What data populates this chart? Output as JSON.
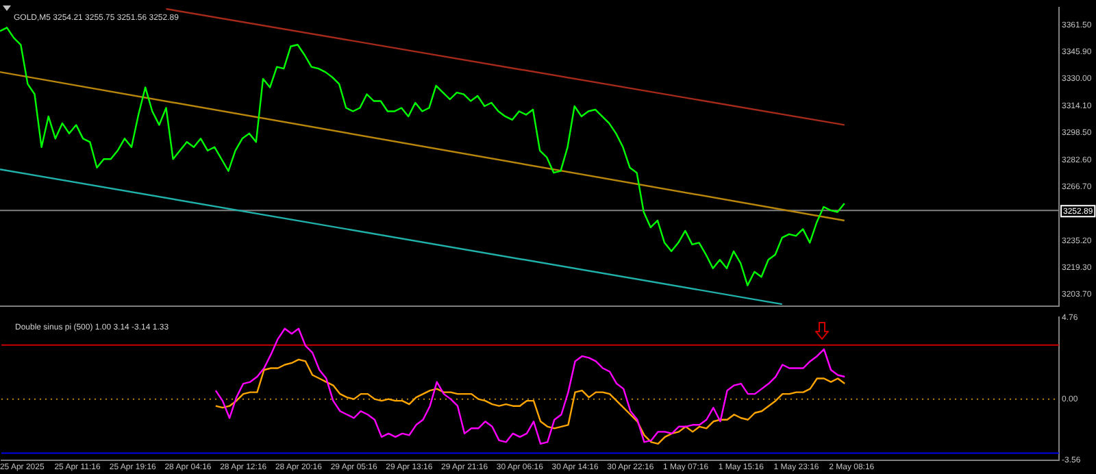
{
  "chart_data": [
    {
      "type": "line",
      "title": "GOLD,M5 3254.21 3255.75 3251.56 3252.89",
      "categories": [
        null,
        null,
        null,
        null,
        null,
        null,
        null,
        null,
        null,
        null,
        null,
        null,
        null,
        null,
        null,
        null,
        null,
        null,
        null,
        null,
        null,
        null,
        null,
        null,
        null,
        null,
        null,
        null,
        null,
        null,
        null,
        null,
        null,
        null,
        null,
        null,
        null,
        null,
        null,
        null,
        null,
        null,
        null,
        null,
        null,
        null,
        null,
        null,
        null,
        null,
        null,
        null,
        null,
        null,
        null,
        null,
        null,
        null,
        null,
        null,
        null,
        null,
        null,
        null,
        null,
        null,
        null,
        null,
        null,
        null,
        null,
        null,
        null,
        null,
        null,
        null,
        null,
        null,
        null,
        null,
        null,
        null,
        null,
        null,
        null,
        null,
        null,
        null,
        null,
        null,
        null,
        null,
        null,
        null,
        null,
        null,
        null,
        null,
        null,
        null,
        null,
        null,
        null,
        null,
        null,
        null,
        null,
        null,
        null,
        null,
        null,
        null,
        null,
        null,
        null,
        null,
        null,
        null,
        null,
        null,
        null,
        null,
        null,
        null,
        null,
        null,
        null,
        null,
        null,
        null,
        null,
        null,
        null,
        null,
        null,
        null,
        null,
        null,
        null,
        null,
        null,
        null,
        null,
        null,
        null,
        null,
        null,
        null,
        null,
        null,
        null,
        null,
        null,
        null
      ],
      "series": [
        {
          "color": "#00ff00",
          "values": [
            3358,
            3360,
            3354,
            3350,
            3327,
            3321,
            3290,
            3308,
            3295,
            3304,
            3298,
            3303,
            3295,
            3293,
            3278,
            3283,
            3283,
            3288,
            3295,
            3290,
            3309,
            3325,
            3311,
            3303,
            3313,
            3283,
            3288,
            3293,
            3290,
            3295,
            3288,
            3290,
            3283,
            3276,
            3288,
            3295,
            3298,
            3293,
            3330,
            3325,
            3337,
            3336,
            3349,
            3350,
            3344,
            3337,
            3336,
            3334,
            3331,
            3327,
            3313,
            3311,
            3313,
            3321,
            3317,
            3317,
            3311,
            3311,
            3313,
            3308,
            3316,
            3311,
            3313,
            3326,
            3322,
            3318,
            3322,
            3321,
            3317,
            3320,
            3314,
            3316,
            3311,
            3308,
            3306,
            3311,
            3309,
            3312,
            3288,
            3284,
            3275,
            3276,
            3290,
            3314,
            3308,
            3311,
            3312,
            3308,
            3304,
            3298,
            3290,
            3278,
            3275,
            3252,
            3243,
            3247,
            3234,
            3229,
            3234,
            3241,
            3233,
            3234,
            3227,
            3219,
            3224,
            3219,
            3229,
            3222,
            3209,
            3217,
            3214,
            3224,
            3227,
            3237,
            3239,
            3238,
            3242,
            3234,
            3246,
            3255,
            3253,
            3252,
            3257,
            null,
            null,
            null,
            null,
            null,
            null,
            null,
            null,
            null,
            null,
            null,
            null,
            null,
            null,
            null,
            null,
            null,
            null,
            null,
            null,
            null,
            null,
            null,
            null,
            null,
            null,
            null,
            null,
            null,
            null,
            null
          ]
        },
        {
          "color": "#a52a1a",
          "values": [
            null,
            null,
            null,
            null,
            null,
            null,
            null,
            null,
            null,
            null,
            null,
            null,
            null,
            null,
            null,
            null,
            null,
            null,
            null,
            null,
            null,
            null,
            null,
            null,
            3371,
            null,
            null,
            null,
            null,
            null,
            null,
            null,
            null,
            null,
            null,
            null,
            null,
            null,
            null,
            null,
            null,
            null,
            null,
            null,
            null,
            null,
            null,
            null,
            null,
            null,
            null,
            null,
            null,
            null,
            null,
            null,
            null,
            null,
            null,
            null,
            null,
            null,
            null,
            null,
            null,
            null,
            null,
            null,
            null,
            null,
            null,
            null,
            null,
            null,
            null,
            null,
            null,
            null,
            null,
            null,
            null,
            null,
            null,
            null,
            null,
            null,
            null,
            null,
            null,
            null,
            null,
            null,
            null,
            null,
            null,
            null,
            null,
            null,
            null,
            null,
            null,
            null,
            null,
            null,
            null,
            null,
            null,
            null,
            null,
            null,
            null,
            null,
            null,
            null,
            null,
            null,
            null,
            null,
            null,
            null,
            null,
            null,
            3303,
            null,
            null,
            null,
            null,
            null,
            null,
            null,
            null,
            null,
            null,
            null,
            null,
            null,
            null,
            null,
            null,
            null,
            null,
            null,
            null,
            null,
            null,
            null,
            null,
            null,
            null,
            null,
            null,
            null,
            null,
            null
          ]
        },
        {
          "color": "#b8860b",
          "values": [
            3334,
            null,
            null,
            null,
            null,
            null,
            null,
            null,
            null,
            null,
            null,
            null,
            null,
            null,
            null,
            null,
            null,
            null,
            null,
            null,
            null,
            null,
            null,
            null,
            null,
            null,
            null,
            null,
            null,
            null,
            null,
            null,
            null,
            null,
            null,
            null,
            null,
            null,
            null,
            null,
            null,
            null,
            null,
            null,
            null,
            null,
            null,
            null,
            null,
            null,
            null,
            null,
            null,
            null,
            null,
            null,
            null,
            null,
            null,
            null,
            null,
            null,
            null,
            null,
            null,
            null,
            null,
            null,
            null,
            null,
            null,
            null,
            null,
            null,
            null,
            null,
            null,
            null,
            null,
            null,
            null,
            null,
            null,
            null,
            null,
            null,
            null,
            null,
            null,
            null,
            null,
            null,
            null,
            null,
            null,
            null,
            null,
            null,
            null,
            null,
            null,
            null,
            null,
            null,
            null,
            null,
            null,
            null,
            null,
            null,
            null,
            null,
            null,
            null,
            null,
            null,
            null,
            null,
            null,
            null,
            null,
            null,
            3247,
            null,
            null,
            null,
            null,
            null,
            null,
            null,
            null,
            null,
            null,
            null,
            null,
            null,
            null,
            null,
            null,
            null,
            null,
            null,
            null,
            null,
            null,
            null,
            null,
            null,
            null,
            null,
            null,
            null,
            null,
            null
          ]
        },
        {
          "color": "#20b2aa",
          "values": [
            3277,
            null,
            null,
            null,
            null,
            null,
            null,
            null,
            null,
            null,
            null,
            null,
            null,
            null,
            null,
            null,
            null,
            null,
            null,
            null,
            null,
            null,
            null,
            null,
            null,
            null,
            null,
            null,
            null,
            null,
            null,
            null,
            null,
            null,
            null,
            null,
            null,
            null,
            null,
            null,
            null,
            null,
            null,
            null,
            null,
            null,
            null,
            null,
            null,
            null,
            null,
            null,
            null,
            null,
            null,
            null,
            null,
            null,
            null,
            null,
            null,
            null,
            null,
            null,
            null,
            null,
            null,
            null,
            null,
            null,
            null,
            null,
            null,
            null,
            null,
            null,
            null,
            null,
            null,
            null,
            null,
            null,
            null,
            null,
            null,
            null,
            null,
            null,
            null,
            null,
            null,
            null,
            null,
            null,
            null,
            null,
            null,
            null,
            null,
            null,
            null,
            null,
            null,
            null,
            null,
            null,
            null,
            null,
            null,
            null,
            null,
            null,
            null,
            3198,
            null,
            null,
            null,
            null,
            null,
            null,
            null,
            null,
            null,
            null,
            null,
            null,
            null,
            null,
            null,
            null,
            null,
            null,
            null,
            null,
            null,
            null,
            null,
            null,
            null,
            null,
            null,
            null,
            null,
            null,
            null,
            null,
            null,
            null,
            null,
            null,
            null,
            null,
            null,
            null
          ]
        }
      ],
      "ylim": [
        3196.9,
        3371.7
      ],
      "yticks": [
        {
          "value": 3203.7,
          "label": "3203.70"
        },
        {
          "value": 3219.3,
          "label": "3219.30"
        },
        {
          "value": 3235.2,
          "label": "3235.20"
        },
        {
          "value": 3266.7,
          "label": "3266.70"
        },
        {
          "value": 3282.6,
          "label": "3282.60"
        },
        {
          "value": 3298.5,
          "label": "3298.50"
        },
        {
          "value": 3314.1,
          "label": "3314.10"
        },
        {
          "value": 3330.0,
          "label": "3330.00"
        },
        {
          "value": 3345.9,
          "label": "3345.90"
        },
        {
          "value": 3361.5,
          "label": "3361.50"
        }
      ],
      "ref_lines": [
        {
          "axis": "y",
          "value": 3252.89,
          "label": "3252.89",
          "color": "#808080"
        }
      ],
      "tick_labels": "y"
    },
    {
      "type": "line",
      "title": "Double sinus pi (500) 1.00 3.14 -3.14 1.33",
      "categories": [
        null,
        null,
        null,
        "25 Apr 2025",
        null,
        null,
        null,
        null,
        null,
        null,
        null,
        "25 Apr 11:16",
        null,
        null,
        null,
        null,
        null,
        null,
        null,
        "25 Apr 19:16",
        null,
        null,
        null,
        null,
        null,
        null,
        null,
        "28 Apr 04:16",
        null,
        null,
        null,
        null,
        null,
        null,
        null,
        "28 Apr 12:16",
        null,
        null,
        null,
        null,
        null,
        null,
        null,
        "28 Apr 20:16",
        null,
        null,
        null,
        null,
        null,
        null,
        null,
        "29 Apr 05:16",
        null,
        null,
        null,
        null,
        null,
        null,
        null,
        "29 Apr 13:16",
        null,
        null,
        null,
        null,
        null,
        null,
        null,
        "29 Apr 21:16",
        null,
        null,
        null,
        null,
        null,
        null,
        null,
        "30 Apr 06:16",
        null,
        null,
        null,
        null,
        null,
        null,
        null,
        "30 Apr 14:16",
        null,
        null,
        null,
        null,
        null,
        null,
        null,
        "30 Apr 22:16",
        null,
        null,
        null,
        null,
        null,
        null,
        null,
        "1 May 07:16",
        null,
        null,
        null,
        null,
        null,
        null,
        null,
        "1 May 15:16",
        null,
        null,
        null,
        null,
        null,
        null,
        null,
        "1 May 23:16",
        null,
        null,
        null,
        null,
        null,
        null,
        null,
        "2 May 08:16",
        null,
        null,
        null,
        null,
        null,
        null,
        null,
        null,
        null,
        null,
        null,
        null,
        null,
        null,
        null,
        null,
        null,
        null,
        null,
        null,
        null,
        null,
        null,
        null,
        null,
        null,
        null,
        null,
        null,
        null
      ],
      "series": [
        {
          "color": "#ff00ff",
          "values": [
            null,
            null,
            null,
            null,
            null,
            null,
            null,
            null,
            null,
            null,
            null,
            null,
            null,
            null,
            null,
            null,
            null,
            null,
            null,
            null,
            null,
            null,
            null,
            null,
            null,
            null,
            null,
            null,
            null,
            null,
            null,
            0.5,
            -0.1,
            -1.1,
            0.1,
            0.9,
            1.0,
            1.3,
            1.8,
            2.6,
            3.5,
            4.1,
            3.8,
            4.1,
            3.1,
            2.7,
            1.7,
            1.2,
            -0.1,
            -0.7,
            -0.9,
            -1.1,
            -0.7,
            -0.9,
            -1.2,
            -2.2,
            -2.0,
            -2.2,
            -2.0,
            -2.1,
            -1.5,
            -1.2,
            -0.4,
            1.0,
            0.3,
            0.0,
            -0.4,
            -2.0,
            -1.7,
            -1.7,
            -1.3,
            -1.6,
            -2.4,
            -2.5,
            -2.0,
            -2.2,
            -2.0,
            -1.3,
            -2.6,
            -2.5,
            -1.2,
            -0.9,
            0.4,
            2.2,
            2.5,
            2.4,
            2.2,
            1.8,
            1.6,
            0.9,
            0.6,
            -0.7,
            -1.2,
            -2.5,
            -2.4,
            -1.9,
            -1.9,
            -2.0,
            -1.6,
            -1.6,
            -1.5,
            -1.5,
            -1.2,
            -0.5,
            -1.3,
            0.5,
            0.8,
            0.9,
            0.3,
            0.3,
            0.6,
            0.9,
            1.3,
            2.0,
            1.8,
            1.8,
            1.8,
            2.2,
            2.5,
            2.9,
            1.7,
            1.4,
            1.3,
            null,
            null,
            null,
            null,
            null,
            null,
            null,
            null,
            null,
            null,
            null,
            null,
            null,
            null,
            null,
            null,
            null,
            null,
            null,
            null,
            null,
            null,
            null,
            null,
            null,
            null,
            null,
            null,
            null,
            null,
            null
          ]
        },
        {
          "color": "#ffa500",
          "values": [
            null,
            null,
            null,
            null,
            null,
            null,
            null,
            null,
            null,
            null,
            null,
            null,
            null,
            null,
            null,
            null,
            null,
            null,
            null,
            null,
            null,
            null,
            null,
            null,
            null,
            null,
            null,
            null,
            null,
            null,
            null,
            -0.4,
            -0.5,
            -0.4,
            -0.1,
            0.3,
            0.4,
            0.4,
            1.7,
            1.8,
            1.8,
            2.0,
            2.1,
            2.3,
            2.2,
            1.4,
            1.2,
            1.0,
            0.8,
            0.3,
            0.1,
            0.0,
            0.3,
            0.3,
            0.0,
            -0.1,
            0.0,
            -0.1,
            -0.1,
            -0.3,
            0.1,
            0.3,
            0.5,
            0.6,
            0.4,
            0.4,
            0.3,
            0.3,
            0.3,
            0.0,
            -0.1,
            -0.3,
            -0.4,
            -0.3,
            -0.4,
            -0.4,
            -0.1,
            -0.1,
            -1.3,
            -1.6,
            -1.7,
            -1.6,
            -1.5,
            0.4,
            0.5,
            0.1,
            0.4,
            0.4,
            0.3,
            -0.1,
            -0.5,
            -0.9,
            -1.3,
            -2.1,
            -2.5,
            -2.6,
            -2.2,
            -2.0,
            -1.9,
            -1.6,
            -1.9,
            -1.6,
            -1.7,
            -1.3,
            -1.2,
            -1.2,
            -0.9,
            -1.1,
            -1.2,
            -0.8,
            -0.7,
            -0.4,
            -0.1,
            0.3,
            0.3,
            0.4,
            0.4,
            0.6,
            1.2,
            1.2,
            1.0,
            1.2,
            0.9,
            null,
            null,
            null,
            null,
            null,
            null,
            null,
            null,
            null,
            null,
            null,
            null,
            null,
            null,
            null,
            null,
            null,
            null,
            null,
            null,
            null,
            null,
            null,
            null,
            null,
            null,
            null,
            null,
            null,
            null,
            null
          ]
        }
      ],
      "ylim": [
        -3.56,
        4.76
      ],
      "yticks": [
        {
          "value": -3.56,
          "label": "-3.56"
        },
        {
          "value": 0,
          "label": "0.00"
        },
        {
          "value": 4.76,
          "label": "4.76"
        }
      ],
      "ref_lines": [
        {
          "axis": "y",
          "value": 3.14,
          "color": "#c80000"
        },
        {
          "axis": "y",
          "value": -3.14,
          "color": "#0000e6"
        },
        {
          "axis": "y",
          "value": 0,
          "color": "#b8860b",
          "line_style": "dotted"
        }
      ]
    }
  ]
}
